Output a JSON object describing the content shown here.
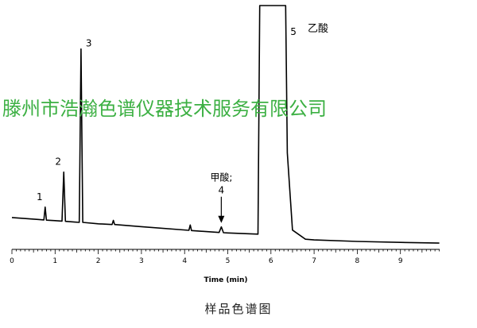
{
  "chart_data": {
    "type": "line",
    "xlabel": "Time (min)",
    "ylabel": "",
    "xlim": [
      0,
      10
    ],
    "ylim": [
      0,
      100
    ],
    "xticks": [
      0,
      1,
      2,
      3,
      4,
      5,
      6,
      7,
      8,
      9
    ],
    "grid": false,
    "x": [
      0,
      0.6,
      0.74,
      0.77,
      0.8,
      1.0,
      1.16,
      1.2,
      1.24,
      1.45,
      1.56,
      1.6,
      1.64,
      2.0,
      2.32,
      2.35,
      2.38,
      3.0,
      4.1,
      4.13,
      4.16,
      4.8,
      4.85,
      4.9,
      5.0,
      5.7,
      5.74,
      6.34,
      6.38,
      6.5,
      6.8,
      7.0,
      8.0,
      9.0,
      9.9
    ],
    "y": [
      13.2,
      12.4,
      12.2,
      17.5,
      12.1,
      11.9,
      11.7,
      32.0,
      11.6,
      11.3,
      11.2,
      83.0,
      11.2,
      10.6,
      10.3,
      12.0,
      10.3,
      9.4,
      7.9,
      10.1,
      7.8,
      7.0,
      9.3,
      6.9,
      6.8,
      6.3,
      101.0,
      101.0,
      40.0,
      8.0,
      4.2,
      3.9,
      3.3,
      2.9,
      2.6
    ],
    "peaks": [
      {
        "label": "1",
        "time": 0.77
      },
      {
        "label": "2",
        "time": 1.2
      },
      {
        "label": "3",
        "time": 1.6
      },
      {
        "label": "4",
        "time": 4.85,
        "name": "甲酸;"
      },
      {
        "label": "5",
        "time": 6.0,
        "name": "乙酸"
      }
    ]
  },
  "watermark": "滕州市浩瀚色谱仪器技术服务有限公司",
  "caption": "样品色谱图",
  "colors": {
    "trace": "#000000",
    "watermark": "#3cb043"
  }
}
